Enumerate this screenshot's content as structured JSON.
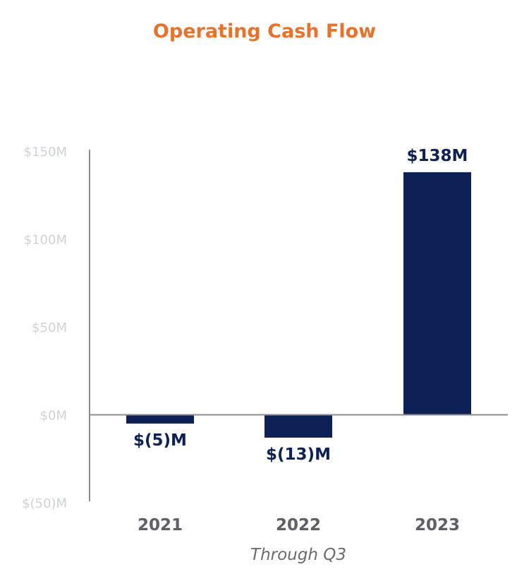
{
  "chart_data": {
    "type": "bar",
    "title": "Operating Cash Flow",
    "categories": [
      "2021",
      "2022",
      "2023"
    ],
    "values": [
      -5,
      -13,
      138
    ],
    "data_labels": [
      "$(5)M",
      "$(13)M",
      "$138M"
    ],
    "y_ticks": [
      -50,
      0,
      50,
      100,
      150
    ],
    "y_tick_labels": [
      "$(50)M",
      "$0M",
      "$50M",
      "$100M",
      "$150M"
    ],
    "ylim": [
      -50,
      150
    ],
    "units": "$M",
    "x_note": "Through Q3",
    "grid": false,
    "legend": "none",
    "colors": {
      "bar": "#0e2156",
      "title": "#e8712c",
      "axis": "#8c8d91",
      "y_tick_text": "#cfd2d8",
      "x_tick_text": "#5f6064"
    }
  }
}
